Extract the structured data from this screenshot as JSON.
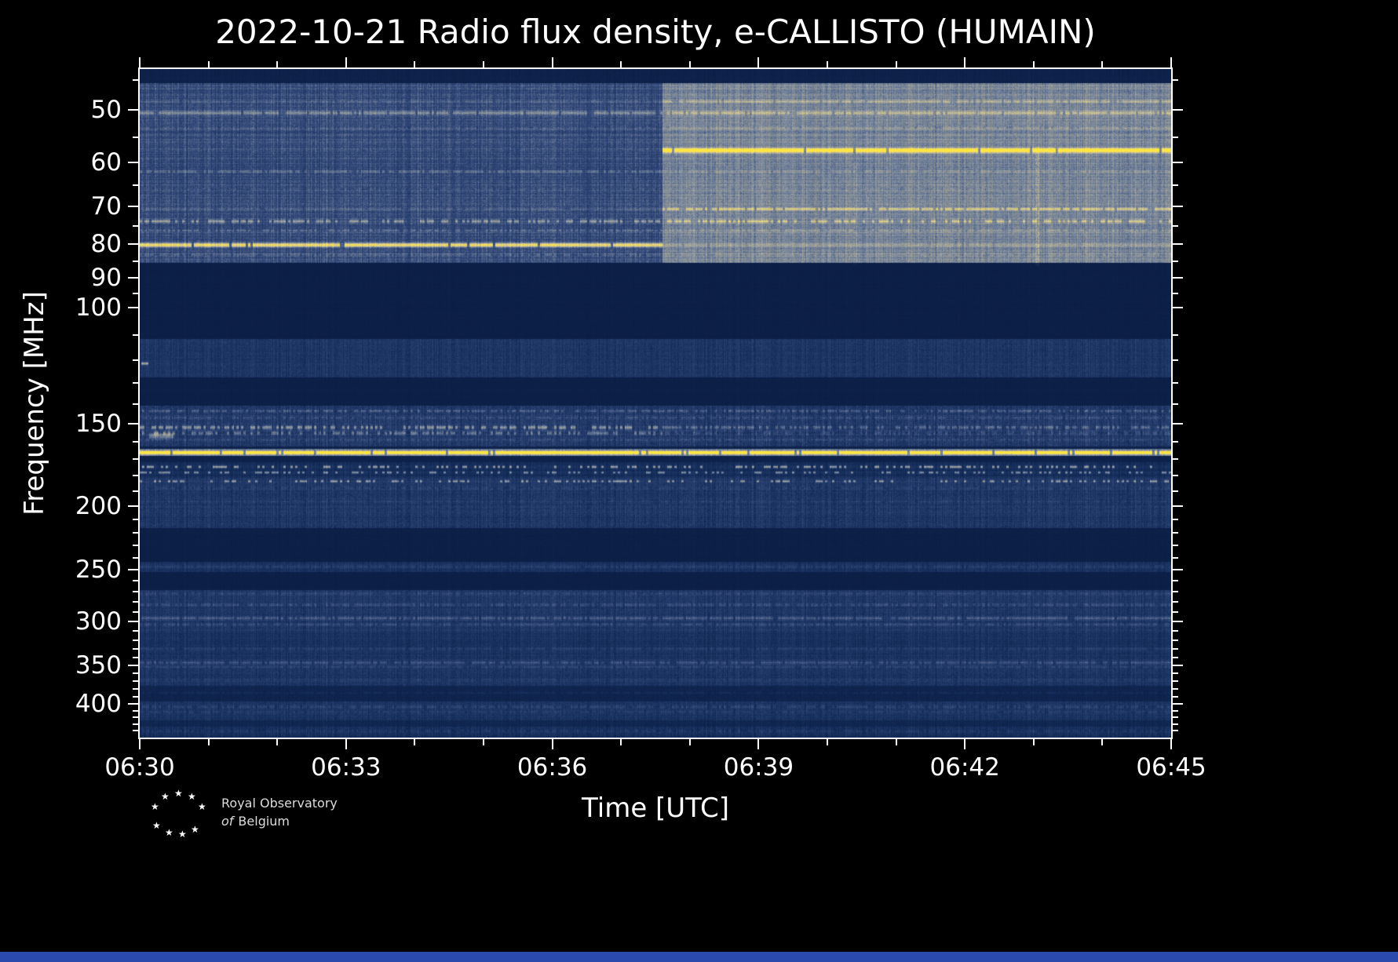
{
  "page": {
    "background": "#000000",
    "bottom_strip_color": "#2b4aad"
  },
  "logo": {
    "line1": "Royal Observatory",
    "line2_italic": "of",
    "line2_rest": "Belgium",
    "star_icon": "★"
  },
  "chart_data": {
    "type": "heatmap",
    "subtype": "radio-spectrogram",
    "title": "2022-10-21 Radio flux density, e-CALLISTO (HUMAIN)",
    "xlabel": "Time [UTC]",
    "ylabel": "Frequency [MHz]",
    "legend": "none",
    "grid": false,
    "time_start_utc": "06:30",
    "time_end_utc": "06:45",
    "duration_min": 15,
    "x_ticks": [
      {
        "label": "06:30",
        "min": 0
      },
      {
        "label": "06:33",
        "min": 3
      },
      {
        "label": "06:36",
        "min": 6
      },
      {
        "label": "06:39",
        "min": 9
      },
      {
        "label": "06:42",
        "min": 12
      },
      {
        "label": "06:45",
        "min": 15
      }
    ],
    "x_minor_minutes": [
      1,
      2,
      4,
      5,
      7,
      8,
      10,
      11,
      13,
      14
    ],
    "y_ticks": [
      50,
      60,
      70,
      80,
      90,
      100,
      150,
      200,
      250,
      300,
      350,
      400
    ],
    "y_minor_ticks": [
      45,
      55,
      65,
      75,
      85,
      95,
      110,
      120,
      130,
      140,
      160,
      170,
      180,
      190,
      210,
      220,
      230,
      240,
      260,
      270,
      280,
      290,
      310,
      320,
      330,
      340,
      360,
      370,
      380,
      390,
      410,
      420,
      430,
      440
    ],
    "freq_axis": {
      "top_mhz": 43.3,
      "bottom_mhz": 450.5,
      "scale": "log"
    },
    "transition_min": 7.6,
    "colormap": [
      [
        0.0,
        "#0a1b40"
      ],
      [
        0.18,
        "#142d5a"
      ],
      [
        0.38,
        "#33497a"
      ],
      [
        0.55,
        "#6f7f98"
      ],
      [
        0.72,
        "#a8a79b"
      ],
      [
        0.85,
        "#d6c98e"
      ],
      [
        0.95,
        "#f3df62"
      ],
      [
        1.0,
        "#ffe63e"
      ]
    ],
    "bands": [
      {
        "f1": 43.3,
        "f2": 45.5,
        "base": [
          0.07,
          0.07
        ],
        "noise": [
          0.03,
          0.03
        ],
        "col": [
          0.02,
          0.02
        ],
        "row": 0.01
      },
      {
        "f1": 45.5,
        "f2": 85.5,
        "base": [
          0.38,
          0.58
        ],
        "noise": [
          0.09,
          0.09
        ],
        "col": [
          0.07,
          0.06
        ],
        "row": 0.05
      },
      {
        "f1": 85.5,
        "f2": 111.5,
        "base": [
          0.045,
          0.045
        ],
        "noise": [
          0.02,
          0.02
        ],
        "col": [
          0.01,
          0.01
        ],
        "row": 0.01
      },
      {
        "f1": 111.5,
        "f2": 127.5,
        "base": [
          0.24,
          0.24
        ],
        "noise": [
          0.08,
          0.08
        ],
        "col": [
          0.05,
          0.05
        ],
        "row": 0.02
      },
      {
        "f1": 127.5,
        "f2": 141.0,
        "base": [
          0.05,
          0.05
        ],
        "noise": [
          0.02,
          0.02
        ],
        "col": [
          0.01,
          0.01
        ],
        "row": 0.01
      },
      {
        "f1": 141.0,
        "f2": 162.5,
        "base": [
          0.27,
          0.27
        ],
        "noise": [
          0.1,
          0.1
        ],
        "col": [
          0.07,
          0.07
        ],
        "row": 0.03
      },
      {
        "f1": 162.5,
        "f2": 164.0,
        "base": [
          0.08,
          0.08
        ],
        "noise": [
          0.03,
          0.03
        ],
        "col": [
          0.01,
          0.01
        ],
        "row": 0.01
      },
      {
        "f1": 164.0,
        "f2": 168.0,
        "base": [
          0.5,
          0.5
        ],
        "noise": [
          0.08,
          0.08
        ],
        "col": [
          0.05,
          0.05
        ],
        "row": 0.02
      },
      {
        "f1": 168.0,
        "f2": 171.5,
        "base": [
          0.07,
          0.07
        ],
        "noise": [
          0.03,
          0.03
        ],
        "col": [
          0.01,
          0.01
        ],
        "row": 0.01
      },
      {
        "f1": 171.5,
        "f2": 180.5,
        "base": [
          0.17,
          0.17
        ],
        "noise": [
          0.07,
          0.07
        ],
        "col": [
          0.05,
          0.05
        ],
        "row": 0.02
      },
      {
        "f1": 180.5,
        "f2": 216.0,
        "base": [
          0.25,
          0.25
        ],
        "noise": [
          0.09,
          0.09
        ],
        "col": [
          0.06,
          0.06
        ],
        "row": 0.03
      },
      {
        "f1": 216.0,
        "f2": 243.5,
        "base": [
          0.05,
          0.05
        ],
        "noise": [
          0.02,
          0.02
        ],
        "col": [
          0.01,
          0.01
        ],
        "row": 0.01
      },
      {
        "f1": 243.5,
        "f2": 252.0,
        "base": [
          0.21,
          0.21
        ],
        "noise": [
          0.07,
          0.07
        ],
        "col": [
          0.05,
          0.05
        ],
        "row": 0.02
      },
      {
        "f1": 252.0,
        "f2": 268.5,
        "base": [
          0.05,
          0.05
        ],
        "noise": [
          0.02,
          0.02
        ],
        "col": [
          0.01,
          0.01
        ],
        "row": 0.01
      },
      {
        "f1": 268.5,
        "f2": 312.0,
        "base": [
          0.25,
          0.25
        ],
        "noise": [
          0.08,
          0.08
        ],
        "col": [
          0.06,
          0.06
        ],
        "row": 0.03
      },
      {
        "f1": 312.0,
        "f2": 338.0,
        "base": [
          0.21,
          0.21
        ],
        "noise": [
          0.07,
          0.07
        ],
        "col": [
          0.05,
          0.05
        ],
        "row": 0.02
      },
      {
        "f1": 338.0,
        "f2": 376.0,
        "base": [
          0.23,
          0.23
        ],
        "noise": [
          0.08,
          0.08
        ],
        "col": [
          0.05,
          0.05
        ],
        "row": 0.03
      },
      {
        "f1": 376.0,
        "f2": 397.0,
        "base": [
          0.1,
          0.1
        ],
        "noise": [
          0.04,
          0.04
        ],
        "col": [
          0.02,
          0.02
        ],
        "row": 0.02
      },
      {
        "f1": 397.0,
        "f2": 424.0,
        "base": [
          0.22,
          0.22
        ],
        "noise": [
          0.08,
          0.08
        ],
        "col": [
          0.05,
          0.05
        ],
        "row": 0.02
      },
      {
        "f1": 424.0,
        "f2": 433.0,
        "base": [
          0.12,
          0.12
        ],
        "noise": [
          0.05,
          0.05
        ],
        "col": [
          0.03,
          0.03
        ],
        "row": 0.02
      },
      {
        "f1": 433.0,
        "f2": 450.6,
        "base": [
          0.19,
          0.19
        ],
        "noise": [
          0.08,
          0.08
        ],
        "col": [
          0.06,
          0.06
        ],
        "row": 0.03
      }
    ],
    "lines": [
      {
        "f": 48.5,
        "w": 2.0,
        "int": [
          0.06,
          0.14
        ],
        "dotted": 0.2
      },
      {
        "f": 50.5,
        "w": 2.4,
        "int": [
          0.2,
          0.18
        ],
        "dotted": 0.15
      },
      {
        "f": 53.2,
        "w": 1.6,
        "int": [
          0.07,
          0.1
        ],
        "dotted": 0.2
      },
      {
        "f": 57.6,
        "w": 3.0,
        "int": [
          0.04,
          0.55
        ],
        "dotted": 0.05
      },
      {
        "f": 62.0,
        "w": 1.8,
        "int": [
          0.13,
          0.08
        ],
        "dotted": 0.25
      },
      {
        "f": 66.0,
        "w": 1.5,
        "int": [
          0.06,
          0.05
        ],
        "dotted": 0.3
      },
      {
        "f": 70.7,
        "w": 1.8,
        "int": [
          0.08,
          0.26
        ],
        "dotted": 0.15
      },
      {
        "f": 73.8,
        "w": 2.2,
        "int": [
          0.22,
          0.2
        ],
        "dotted": 0.45
      },
      {
        "f": 76.2,
        "w": 1.5,
        "int": [
          0.1,
          0.08
        ],
        "dotted": 0.4
      },
      {
        "f": 80.2,
        "w": 2.8,
        "int": [
          0.55,
          0.1
        ],
        "dotted": 0.05
      },
      {
        "f": 83.0,
        "w": 1.6,
        "int": [
          0.1,
          0.06
        ],
        "dotted": 0.3
      },
      {
        "f": 143.5,
        "w": 1.8,
        "int": [
          0.16,
          0.16
        ],
        "dotted": 0.35
      },
      {
        "f": 147.0,
        "w": 1.6,
        "int": [
          0.1,
          0.1
        ],
        "dotted": 0.3
      },
      {
        "f": 152.0,
        "w": 2.6,
        "int": [
          0.26,
          0.16
        ],
        "dotted": 0.5
      },
      {
        "f": 155.0,
        "w": 2.4,
        "int": [
          0.2,
          0.1
        ],
        "dotted": 0.55
      },
      {
        "f": 158.8,
        "w": 1.5,
        "int": [
          0.08,
          0.08
        ],
        "dotted": 0.3
      },
      {
        "f": 166.0,
        "w": 2.4,
        "int": [
          0.62,
          0.62
        ],
        "dotted": 0.06
      },
      {
        "f": 174.5,
        "w": 1.8,
        "int": [
          0.34,
          0.34
        ],
        "dotted": 0.62
      },
      {
        "f": 178.0,
        "w": 1.6,
        "int": [
          0.28,
          0.28
        ],
        "dotted": 0.68
      },
      {
        "f": 183.5,
        "w": 1.6,
        "int": [
          0.26,
          0.26
        ],
        "dotted": 0.72
      },
      {
        "f": 188.0,
        "w": 1.6,
        "int": [
          0.08,
          0.08
        ],
        "dotted": 0.3
      },
      {
        "f": 197.0,
        "w": 2.2,
        "int": [
          0.05,
          0.05
        ],
        "dotted": 0.3
      },
      {
        "f": 247.5,
        "w": 2.2,
        "int": [
          0.08,
          0.08
        ],
        "dotted": 0.2
      },
      {
        "f": 272.0,
        "w": 1.8,
        "int": [
          0.08,
          0.08
        ],
        "dotted": 0.3
      },
      {
        "f": 283.0,
        "w": 2.0,
        "int": [
          0.1,
          0.1
        ],
        "dotted": 0.35
      },
      {
        "f": 296.5,
        "w": 2.2,
        "int": [
          0.16,
          0.16
        ],
        "dotted": 0.2
      },
      {
        "f": 303.0,
        "w": 1.8,
        "int": [
          0.1,
          0.1
        ],
        "dotted": 0.3
      },
      {
        "f": 330.0,
        "w": 1.8,
        "int": [
          0.08,
          0.08
        ],
        "dotted": 0.3
      },
      {
        "f": 346.5,
        "w": 2.2,
        "int": [
          0.14,
          0.14
        ],
        "dotted": 0.25
      },
      {
        "f": 352.0,
        "w": 1.6,
        "int": [
          0.08,
          0.08
        ],
        "dotted": 0.3
      },
      {
        "f": 368.0,
        "w": 1.6,
        "int": [
          0.05,
          0.05
        ],
        "dotted": 0.3
      },
      {
        "f": 385.0,
        "w": 1.6,
        "int": [
          0.06,
          0.06
        ],
        "dotted": 0.4
      },
      {
        "f": 404.5,
        "w": 2.0,
        "int": [
          0.11,
          0.11
        ],
        "dotted": 0.3
      },
      {
        "f": 412.0,
        "w": 1.6,
        "int": [
          0.07,
          0.07
        ],
        "dotted": 0.35
      },
      {
        "f": 440.0,
        "w": 1.8,
        "int": [
          0.07,
          0.07
        ],
        "dotted": 0.4
      }
    ],
    "blip_bands": [
      {
        "f1": 113.0,
        "f2": 126.5,
        "density": [
          0.45,
          0.45
        ],
        "int": [
          0.22,
          0.75
        ],
        "len": [
          2,
          9
        ],
        "hw": [
          1.2,
          2.6
        ]
      },
      {
        "f1": 147.0,
        "f2": 159.0,
        "density": [
          0.3,
          0.13
        ],
        "int": [
          0.18,
          0.55
        ],
        "len": [
          5,
          36
        ],
        "hw": [
          1.5,
          4.0
        ]
      }
    ],
    "streaks": [
      {
        "t": 13.05,
        "f1": 57,
        "f2": 86,
        "int": 0.16,
        "w": 2
      },
      {
        "t": 10.4,
        "f1": 60,
        "f2": 86,
        "int": 0.09,
        "w": 2
      }
    ]
  }
}
